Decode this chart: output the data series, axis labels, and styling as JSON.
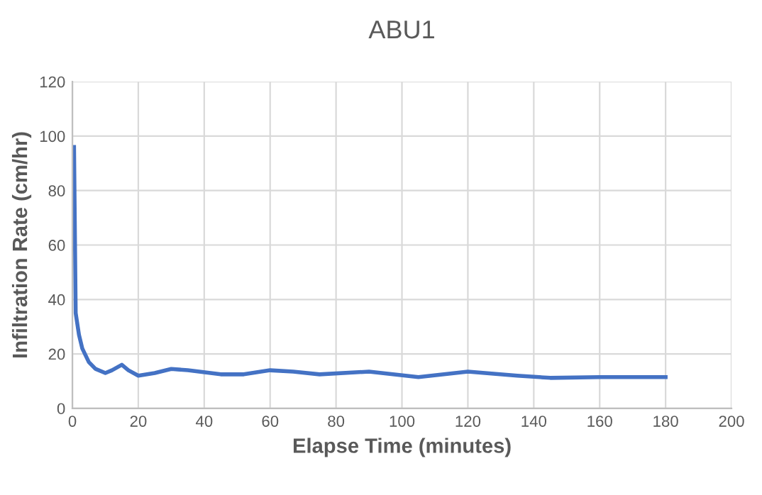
{
  "chart_data": {
    "type": "line",
    "title": "ABU1",
    "xlabel": "Elapse Time (minutes)",
    "ylabel": "Infiltration Rate (cm/hr)",
    "x": [
      0.5,
      1,
      2,
      3,
      5,
      7,
      10,
      12,
      15,
      17,
      20,
      25,
      30,
      35,
      45,
      52,
      60,
      67,
      75,
      90,
      105,
      120,
      135,
      145,
      160,
      180
    ],
    "series": [
      {
        "color": "#4472c4",
        "values": [
          96,
          35,
          27,
          22,
          17,
          14.5,
          13,
          14,
          16,
          14,
          12,
          13,
          14.5,
          14,
          12.5,
          12.5,
          14,
          13.5,
          12.5,
          13.5,
          11.5,
          13.5,
          12,
          11.2,
          11.5,
          11.5
        ]
      }
    ],
    "xlim": [
      0,
      200
    ],
    "xticks": [
      0,
      20,
      40,
      60,
      80,
      100,
      120,
      140,
      160,
      180,
      200
    ],
    "ylim": [
      0,
      120
    ],
    "yticks": [
      0,
      20,
      40,
      60,
      80,
      100,
      120
    ],
    "grid": true,
    "marker": "none",
    "line_style": "solid"
  }
}
